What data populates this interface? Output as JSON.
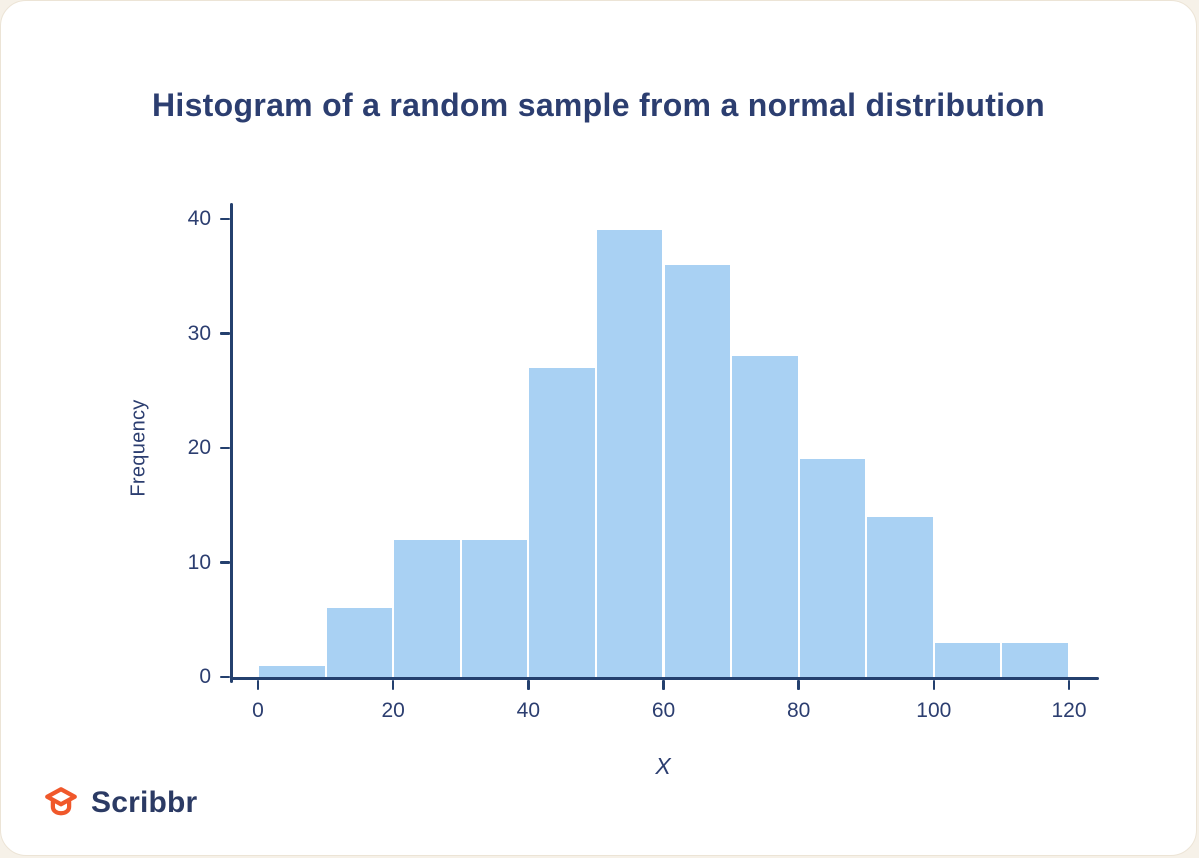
{
  "title": "Histogram of a random sample from a normal distribution",
  "brand": {
    "name": "Scribbr",
    "icon_color": "#f0582b",
    "text_color": "#2b3a64"
  },
  "colors": {
    "bar": "#a9d1f3",
    "axis": "#24406e",
    "text": "#2c3e70",
    "card_bg": "#ffffff",
    "page_bg": "#f6f1e8"
  },
  "chart_data": {
    "type": "bar",
    "subtype": "histogram",
    "title": "Histogram of a random sample from a normal distribution",
    "xlabel": "X",
    "ylabel": "Frequency",
    "bin_width": 10,
    "bin_edges": [
      0,
      10,
      20,
      30,
      40,
      50,
      60,
      70,
      80,
      90,
      100,
      110,
      120
    ],
    "values": [
      1,
      6,
      12,
      12,
      27,
      39,
      36,
      28,
      19,
      14,
      3,
      3
    ],
    "x_ticks": [
      0,
      20,
      40,
      60,
      80,
      100,
      120
    ],
    "y_ticks": [
      0,
      10,
      20,
      30,
      40
    ],
    "xlim": [
      0,
      120
    ],
    "ylim": [
      0,
      40
    ],
    "grid": false,
    "legend": false,
    "bar_color": "#a9d1f3",
    "axis_color": "#24406e"
  }
}
